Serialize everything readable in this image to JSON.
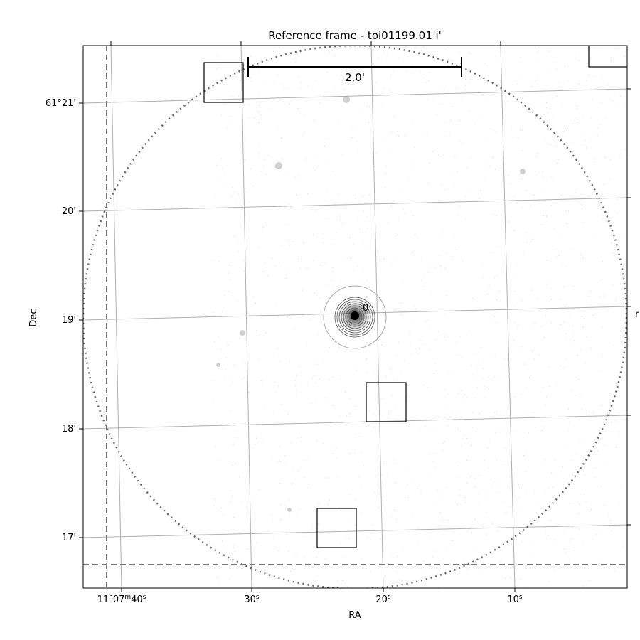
{
  "chart_data": {
    "type": "scatter",
    "title": "Reference frame - toi01199.01 i'",
    "xlabel": "RA",
    "ylabel": "Dec",
    "right_axis_label": "r",
    "x_ticks": [
      {
        "label": "11h07m40s",
        "parts": [
          "11",
          "h",
          "07",
          "m",
          "40",
          "s"
        ]
      },
      {
        "label": "30s",
        "parts": [
          "30",
          "s"
        ]
      },
      {
        "label": "20s",
        "parts": [
          "20",
          "s"
        ]
      },
      {
        "label": "10s",
        "parts": [
          "10",
          "s"
        ]
      }
    ],
    "y_ticks": [
      "61°21'",
      "20'",
      "19'",
      "18'",
      "17'"
    ],
    "scale_bar_label": "2.0'",
    "target": {
      "label": "0"
    },
    "field_circle": "dotted",
    "guide_lines": "dashed",
    "grid": true,
    "aperture_boxes": 5,
    "colors": {
      "grid": "#b0b0b0",
      "dotted_circle": "#666666",
      "dashed_lines": "#777777",
      "boxes": "#000000"
    }
  }
}
